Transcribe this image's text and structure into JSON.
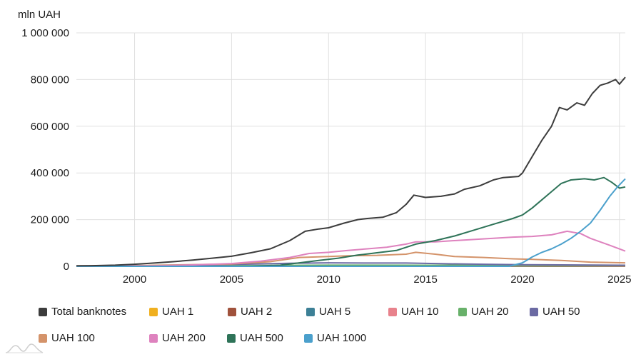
{
  "chart_data": {
    "type": "line",
    "title": "",
    "ylabel": "mln UAH",
    "xlabel": "",
    "ylim": [
      0,
      1000000
    ],
    "xlim": [
      1997.0,
      2025.3
    ],
    "y_ticks": [
      0,
      200000,
      400000,
      600000,
      800000,
      1000000
    ],
    "y_tick_labels": [
      "0",
      "200 000",
      "400 000",
      "600 000",
      "800 000",
      "1 000 000"
    ],
    "x_ticks": [
      2000,
      2005,
      2010,
      2015,
      2020,
      2025
    ],
    "x_tick_labels": [
      "2000",
      "2005",
      "2010",
      "2015",
      "2020",
      "2025"
    ],
    "grid": true,
    "legend_position": "bottom",
    "series": [
      {
        "name": "Total banknotes",
        "color": "#3c3c3c",
        "x": [
          1997.0,
          1998.0,
          1999.0,
          2000.0,
          2001.0,
          2002.0,
          2003.0,
          2004.0,
          2005.0,
          2006.0,
          2007.0,
          2008.0,
          2008.8,
          2009.5,
          2010.0,
          2010.8,
          2011.5,
          2012.0,
          2012.8,
          2013.5,
          2014.0,
          2014.4,
          2015.0,
          2015.8,
          2016.5,
          2017.0,
          2017.8,
          2018.5,
          2019.0,
          2019.8,
          2020.0,
          2020.5,
          2021.0,
          2021.5,
          2021.9,
          2022.3,
          2022.8,
          2023.2,
          2023.6,
          2024.0,
          2024.4,
          2024.8,
          2025.0,
          2025.3
        ],
        "values": [
          2000,
          3000,
          5000,
          9000,
          14000,
          20000,
          27000,
          35000,
          43000,
          58000,
          75000,
          110000,
          150000,
          160000,
          165000,
          185000,
          200000,
          205000,
          210000,
          230000,
          265000,
          305000,
          295000,
          300000,
          310000,
          330000,
          345000,
          370000,
          380000,
          385000,
          400000,
          470000,
          540000,
          600000,
          680000,
          670000,
          700000,
          690000,
          740000,
          775000,
          785000,
          800000,
          780000,
          810000
        ]
      },
      {
        "name": "UAH 1",
        "color": "#f0b020",
        "x": [
          1997.0,
          2005.0,
          2010.0,
          2015.0,
          2020.0,
          2025.3
        ],
        "values": [
          300,
          500,
          600,
          600,
          500,
          400
        ]
      },
      {
        "name": "UAH 2",
        "color": "#a0523c",
        "x": [
          1997.0,
          2005.0,
          2010.0,
          2015.0,
          2020.0,
          2025.3
        ],
        "values": [
          400,
          700,
          800,
          800,
          700,
          600
        ]
      },
      {
        "name": "UAH 5",
        "color": "#3d8096",
        "x": [
          1997.0,
          2005.0,
          2010.0,
          2015.0,
          2020.0,
          2025.3
        ],
        "values": [
          500,
          1500,
          2000,
          2000,
          1800,
          1500
        ]
      },
      {
        "name": "UAH 10",
        "color": "#e8828c",
        "x": [
          1997.0,
          2005.0,
          2010.0,
          2015.0,
          2020.0,
          2025.3
        ],
        "values": [
          800,
          2500,
          3500,
          3500,
          3000,
          2500
        ]
      },
      {
        "name": "UAH 20",
        "color": "#68b16a",
        "x": [
          1997.0,
          2005.0,
          2010.0,
          2015.0,
          2020.0,
          2025.3
        ],
        "values": [
          800,
          3000,
          5000,
          4500,
          4000,
          3500
        ]
      },
      {
        "name": "UAH 50",
        "color": "#6b6aa3",
        "x": [
          1997.0,
          2002.0,
          2005.0,
          2008.0,
          2010.0,
          2012.0,
          2014.0,
          2016.0,
          2018.0,
          2020.0,
          2022.0,
          2025.3
        ],
        "values": [
          1000,
          4000,
          8000,
          13000,
          15000,
          14000,
          14000,
          11000,
          9000,
          7000,
          6000,
          4500
        ]
      },
      {
        "name": "UAH 100",
        "color": "#d4936a",
        "x": [
          1997.0,
          2000.0,
          2005.0,
          2007.0,
          2008.5,
          2010.0,
          2011.0,
          2012.5,
          2014.0,
          2014.5,
          2015.5,
          2016.5,
          2018.0,
          2019.5,
          2020.5,
          2022.0,
          2023.5,
          2025.3
        ],
        "values": [
          0,
          3000,
          10000,
          20000,
          38000,
          42000,
          45000,
          47000,
          52000,
          60000,
          52000,
          42000,
          38000,
          32000,
          30000,
          25000,
          18000,
          15000
        ]
      },
      {
        "name": "UAH 200",
        "color": "#de82be",
        "x": [
          1997.0,
          2001.0,
          2003.0,
          2005.0,
          2006.5,
          2008.0,
          2009.0,
          2010.0,
          2011.0,
          2012.0,
          2013.0,
          2014.0,
          2014.5,
          2015.5,
          2016.5,
          2017.5,
          2018.5,
          2019.5,
          2020.5,
          2021.5,
          2022.3,
          2023.0,
          2023.5,
          2024.0,
          2024.5,
          2025.3
        ],
        "values": [
          0,
          2000,
          6000,
          12000,
          22000,
          38000,
          55000,
          60000,
          68000,
          75000,
          82000,
          95000,
          105000,
          105000,
          110000,
          115000,
          120000,
          125000,
          128000,
          135000,
          150000,
          140000,
          120000,
          105000,
          90000,
          65000
        ]
      },
      {
        "name": "UAH 500",
        "color": "#2e7358",
        "x": [
          1997.0,
          2006.0,
          2007.5,
          2008.5,
          2009.5,
          2010.5,
          2011.5,
          2012.5,
          2013.5,
          2014.5,
          2015.5,
          2016.5,
          2017.5,
          2018.5,
          2019.5,
          2020.0,
          2020.5,
          2021.0,
          2021.5,
          2022.0,
          2022.5,
          2023.2,
          2023.7,
          2024.2,
          2024.6,
          2025.0,
          2025.3
        ],
        "values": [
          0,
          0,
          5000,
          15000,
          25000,
          35000,
          48000,
          58000,
          68000,
          95000,
          110000,
          130000,
          155000,
          180000,
          205000,
          220000,
          250000,
          285000,
          320000,
          355000,
          370000,
          375000,
          370000,
          380000,
          360000,
          335000,
          340000
        ]
      },
      {
        "name": "UAH 1000",
        "color": "#4ba0cc",
        "x": [
          1997.0,
          2019.3,
          2020.0,
          2020.5,
          2021.0,
          2021.5,
          2022.0,
          2022.5,
          2023.0,
          2023.5,
          2024.0,
          2024.5,
          2024.9,
          2025.3
        ],
        "values": [
          0,
          0,
          15000,
          40000,
          60000,
          75000,
          95000,
          120000,
          150000,
          185000,
          240000,
          300000,
          340000,
          375000
        ]
      }
    ]
  }
}
